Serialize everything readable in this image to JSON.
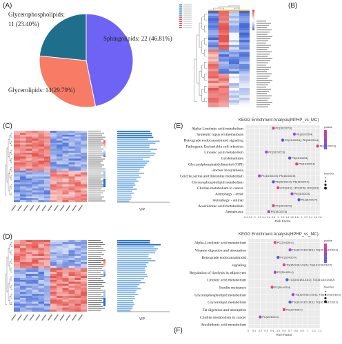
{
  "panels": {
    "A": {
      "label": "(A)",
      "chart_data": {
        "type": "pie",
        "categories": [
          "Sphingolipids",
          "Glycerolipids",
          "Glycerophospholipids"
        ],
        "values": [
          22,
          14,
          11
        ],
        "percents": [
          "46.81%",
          "29.79%",
          "23.40%"
        ],
        "colors": [
          "#6f63f5",
          "#f77b65",
          "#1f6f8c"
        ]
      },
      "label_sphingo": "Sphingolipids: 22 (46.81%)",
      "label_glycero": "Glycerolipids: 14(29.79%)",
      "label_gpl_1": "Glycerophospholipids:",
      "label_gpl_2": "11 (23.40%)"
    },
    "B": {
      "label": "(B)"
    },
    "C": {
      "label": "(C)",
      "xlabel": "VIP"
    },
    "D": {
      "label": "(D)",
      "xlabel": "VIP"
    },
    "E": {
      "label": "(E)",
      "chart_data": {
        "type": "scatter",
        "title": "KEGG Enrichment Analysis(MPHP_vs_MC)",
        "xlabel": "Rich Factor",
        "terms": [
          "Alpha-Linolenic acid metabolism",
          "Systemic lupus erythematosus",
          "Retrograde endocannabinoid signaling",
          "Pathogenic Escherichia coli infection",
          "Linoleic acid metabolism",
          "Leishmaniasis",
          "Glycosylphosphatidylinositol (GPI)",
          "-anchor biosynthesis",
          "Glycine,serine and threonine metabolism",
          "Glycerophospholipid metabolism",
          "Choline metabolism in cancer",
          "Autophagy - other",
          "Autophagy - animal",
          "Arachidonic acid metabolism",
          "Amoebiasis"
        ],
        "points": [
          {
            "y": 0,
            "x": 0.8,
            "label": "PC(16:0/22:6)"
          },
          {
            "y": 1,
            "x": 1.7,
            "label": "PE(18:0/20:4)"
          },
          {
            "y": 2,
            "x": 1.2,
            "label": "PC(16:0/22:6); PE(18:0/20:4)"
          },
          {
            "y": 3,
            "x": 2.7,
            "label": "PE(18:0/20:4)"
          },
          {
            "y": 4,
            "x": 0.5,
            "label": "PC(16:0/22:6)"
          },
          {
            "y": 5,
            "x": 1.5,
            "label": "PS(18:0/22:6)"
          },
          {
            "y": 6,
            "x": 1.8,
            "label": "PE(16:0/20:4)"
          },
          {
            "y": 8,
            "x": 0.2,
            "label": "PC(16:0/22:6); PS(18:0/22:6)"
          },
          {
            "y": 9,
            "x": 0.8,
            "label": "PE(16:0/22:6); PE(18:0/20:4)"
          },
          {
            "y": 10,
            "x": 1.0,
            "label": "LPC(24:1); LPC(22:6); LPC(24:0)"
          },
          {
            "y": 11,
            "x": 1.6,
            "label": "PE(18:0/20:4)"
          },
          {
            "y": 12,
            "x": 1.9,
            "label": "PE(18:0/20:4)"
          },
          {
            "y": 13,
            "x": 0.8,
            "label": "PC(16:0/22:6)"
          },
          {
            "y": 14,
            "x": 0.6,
            "label": "PS(18:0/22:6)"
          }
        ],
        "xticks": [
          "-0.4",
          "-0.2",
          "0",
          "0.2",
          "0.4",
          "0.6",
          "0.8",
          "1",
          "1.2",
          "1.4",
          "1.6",
          "1.8",
          "2",
          "2.2",
          "2.4",
          "2.6",
          "2.8"
        ],
        "legend_pvalue": "pvalue",
        "legend_number": "Number"
      }
    },
    "F": {
      "label": "(F)",
      "chart_data": {
        "type": "scatter",
        "title": "KEGG Enrichment Analysis(HPHP_vs_MC)",
        "xlabel": "Rich Factor",
        "terms": [
          "Alpha-Linolenic acid metabolism",
          "Vitamin digestion and absorption",
          "Retrograde endocannabinoid",
          "signaling",
          "Regulation of lipolysis in adipocytes",
          "Linoleic acid metabolism",
          "Insulin resistance",
          "Glycerophospholipid metabolism",
          "Glycerolipid metabolism",
          "Fat digestion and absorption",
          "Choline metabolism in cancer",
          "Arachidonic acid metabolism"
        ],
        "points": [
          {
            "y": 0,
            "x": 0.45,
            "label": "PC(20:4/20:4)"
          },
          {
            "y": 1,
            "x": 0.7,
            "label": "TG(16:0/18:1/18:1); TG(16:1/18:2/18:2)"
          },
          {
            "y": 2,
            "x": 0.5,
            "label": "PC(20:4/20:4)"
          },
          {
            "y": 3,
            "x": 0.6,
            "label": "TG(16:0/18:1/18:1); TG(16:1/18:2/18:2)"
          },
          {
            "y": 4,
            "x": 0.45,
            "label": "PC(20:4/20:4)"
          },
          {
            "y": 5,
            "x": 0.65,
            "label": "TG(16:0/18:1/18:1); TG(16:1/18:2/18:2)"
          },
          {
            "y": 6,
            "x": 0.4,
            "label": "PC(20:4/20:4)"
          },
          {
            "y": 7,
            "x": 0.75,
            "label": "TG(16:0/18:1/18:1); TG(16:1/18:2/18:2)"
          },
          {
            "y": 8,
            "x": 0.7,
            "label": "TG(16:0/18:1/18:1); TG(16:1/18:2/18:2)"
          },
          {
            "y": 9,
            "x": 0.6,
            "label": "PC(20:4/20:4)"
          },
          {
            "y": 10,
            "x": 0.2,
            "label": "PC(20:4/20:4)"
          }
        ],
        "xticks": [
          "0",
          "0.1",
          "0.2",
          "0.3",
          "0.4",
          "0.5",
          "0.6",
          "0.7",
          "0.8",
          "0.9",
          "1",
          "1.1",
          "1.2"
        ],
        "legend_pvalue": "pvalue",
        "legend_number": "Number"
      }
    }
  }
}
